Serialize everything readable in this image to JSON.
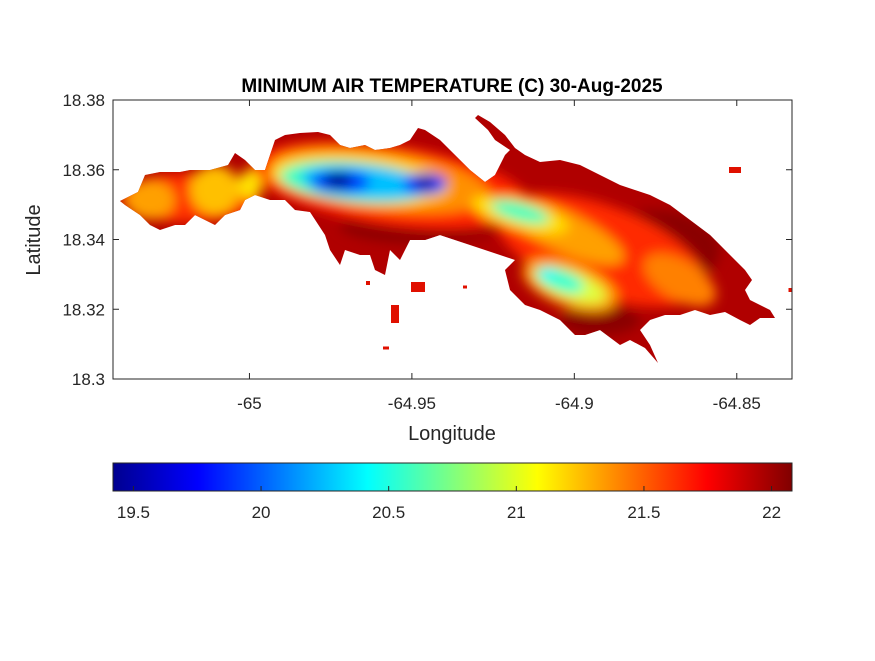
{
  "chart_data": {
    "type": "heatmap",
    "title": "MINIMUM AIR TEMPERATURE (C) 30-Aug-2025",
    "xlabel": "Longitude",
    "ylabel": "Latitude",
    "xlim": [
      -65.042,
      -64.833
    ],
    "ylim": [
      18.3,
      18.38
    ],
    "xticks": [
      -65,
      -64.95,
      -64.9,
      -64.85
    ],
    "xtick_labels": [
      "-65",
      "-64.95",
      "-64.9",
      "-64.85"
    ],
    "yticks": [
      18.3,
      18.32,
      18.34,
      18.36,
      18.38
    ],
    "ytick_labels": [
      "18.3",
      "18.32",
      "18.34",
      "18.36",
      "18.38"
    ],
    "colormap": "jet",
    "clim": [
      19.42,
      22.08
    ],
    "colorbar": {
      "location": "bottom",
      "ticks": [
        19.5,
        20,
        20.5,
        21,
        21.5,
        22
      ],
      "tick_labels": [
        "19.5",
        "20",
        "20.5",
        "21",
        "21.5",
        "22"
      ]
    },
    "grid": false,
    "features": [
      {
        "lon": -64.972,
        "lat": 18.357,
        "value": 19.5
      },
      {
        "lon": -64.948,
        "lat": 18.356,
        "value": 19.6
      },
      {
        "lon": -64.91,
        "lat": 18.329,
        "value": 20.4
      },
      {
        "lon": -64.925,
        "lat": 18.35,
        "value": 20.5
      }
    ]
  }
}
